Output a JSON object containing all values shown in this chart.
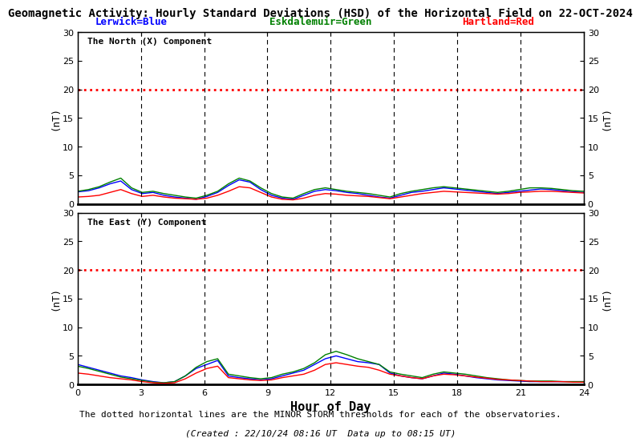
{
  "title": "Geomagnetic Activity: Hourly Standard Deviations (HSD) of the Horizontal Field on 22-OCT-2024",
  "legend_lerwick": "Lerwick=Blue",
  "legend_eskdalemuir": "Eskdalemuir=Green",
  "legend_hartland": "Hartland=Red",
  "subplot1_label": "The North (X) Component",
  "subplot2_label": "The East (Y) Component",
  "xlabel": "Hour of Day",
  "ylabel": "(nT)",
  "footer1": "The dotted horizontal lines are the MINOR STORM thresholds for each of the observatories.",
  "footer2": "(Created : 22/10/24 08:16 UT  Data up to 08:15 UT)",
  "storm_threshold": 20,
  "ylim": [
    0,
    30
  ],
  "xlim": [
    0,
    24
  ],
  "yticks": [
    0,
    5,
    10,
    15,
    20,
    25,
    30
  ],
  "xticks": [
    0,
    3,
    6,
    9,
    12,
    15,
    18,
    21,
    24
  ],
  "vline_positions": [
    3,
    6,
    9,
    12,
    15,
    18,
    21
  ],
  "colors": {
    "lerwick": "blue",
    "eskdalemuir": "green",
    "hartland": "red",
    "threshold": "red",
    "vline": "black",
    "title": "black",
    "lerwick_label": "blue",
    "eskdalemuir_label": "green",
    "hartland_label": "red"
  },
  "north_x_lerwick": [
    2.1,
    2.3,
    2.8,
    3.5,
    4.0,
    2.5,
    1.8,
    2.0,
    1.5,
    1.2,
    1.0,
    0.8,
    1.3,
    2.0,
    3.2,
    4.2,
    3.8,
    2.5,
    1.5,
    1.0,
    0.8,
    1.5,
    2.2,
    2.5,
    2.3,
    2.0,
    1.8,
    1.5,
    1.2,
    1.0,
    1.5,
    2.0,
    2.2,
    2.5,
    2.8,
    2.6,
    2.4,
    2.2,
    2.0,
    1.8,
    2.0,
    2.2,
    2.4,
    2.6,
    2.5,
    2.3,
    2.1,
    2.0
  ],
  "north_x_eskdalemuir": [
    2.2,
    2.5,
    3.0,
    3.8,
    4.5,
    2.8,
    2.0,
    2.2,
    1.8,
    1.5,
    1.2,
    1.0,
    1.5,
    2.2,
    3.5,
    4.5,
    4.0,
    2.8,
    1.8,
    1.2,
    1.0,
    1.8,
    2.5,
    2.8,
    2.5,
    2.2,
    2.0,
    1.8,
    1.5,
    1.2,
    1.8,
    2.2,
    2.5,
    2.8,
    3.0,
    2.8,
    2.6,
    2.4,
    2.2,
    2.0,
    2.2,
    2.5,
    2.8,
    2.8,
    2.7,
    2.5,
    2.3,
    2.2
  ],
  "north_x_hartland": [
    1.2,
    1.3,
    1.5,
    2.0,
    2.5,
    1.8,
    1.3,
    1.5,
    1.2,
    1.0,
    0.9,
    0.8,
    1.0,
    1.5,
    2.2,
    3.0,
    2.8,
    2.0,
    1.2,
    0.8,
    0.7,
    1.0,
    1.5,
    1.8,
    1.7,
    1.5,
    1.4,
    1.3,
    1.1,
    0.9,
    1.2,
    1.5,
    1.8,
    2.0,
    2.2,
    2.1,
    2.0,
    1.9,
    1.8,
    1.7,
    1.8,
    2.0,
    2.1,
    2.2,
    2.2,
    2.1,
    2.0,
    1.9
  ],
  "east_y_lerwick": [
    3.5,
    3.0,
    2.5,
    2.0,
    1.5,
    1.2,
    0.8,
    0.5,
    0.3,
    0.5,
    1.5,
    2.8,
    3.5,
    4.2,
    1.5,
    1.2,
    1.0,
    0.8,
    1.0,
    1.5,
    2.0,
    2.5,
    3.5,
    4.5,
    5.0,
    4.5,
    4.0,
    3.8,
    3.5,
    2.0,
    1.5,
    1.2,
    1.0,
    1.5,
    2.0,
    1.8,
    1.5,
    1.2,
    1.0,
    0.8,
    0.7,
    0.6,
    0.5,
    0.5,
    0.5,
    0.5,
    0.5,
    0.5
  ],
  "east_y_eskdalemuir": [
    3.2,
    2.8,
    2.3,
    1.8,
    1.3,
    1.0,
    0.7,
    0.4,
    0.3,
    0.5,
    1.5,
    3.0,
    4.0,
    4.5,
    1.8,
    1.5,
    1.2,
    1.0,
    1.2,
    1.8,
    2.2,
    2.8,
    3.8,
    5.2,
    5.8,
    5.2,
    4.5,
    4.0,
    3.5,
    2.2,
    1.8,
    1.5,
    1.2,
    1.8,
    2.2,
    2.0,
    1.8,
    1.5,
    1.2,
    1.0,
    0.8,
    0.7,
    0.6,
    0.6,
    0.6,
    0.5,
    0.5,
    0.5
  ],
  "east_y_hartland": [
    2.0,
    1.8,
    1.5,
    1.2,
    1.0,
    0.8,
    0.5,
    0.3,
    0.2,
    0.3,
    1.0,
    2.0,
    2.8,
    3.2,
    1.2,
    1.0,
    0.8,
    0.7,
    0.8,
    1.2,
    1.5,
    1.8,
    2.5,
    3.5,
    3.8,
    3.5,
    3.2,
    3.0,
    2.5,
    1.8,
    1.5,
    1.2,
    1.0,
    1.5,
    1.8,
    1.7,
    1.5,
    1.3,
    1.1,
    0.9,
    0.8,
    0.7,
    0.6,
    0.5,
    0.5,
    0.5,
    0.4,
    0.4
  ]
}
